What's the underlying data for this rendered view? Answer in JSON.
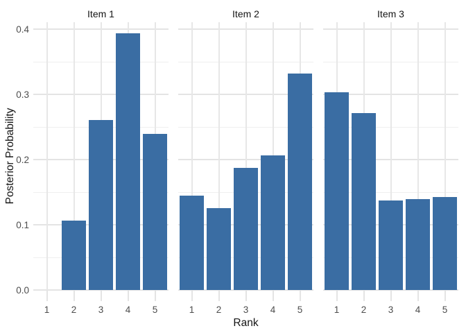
{
  "chart_data": {
    "type": "bar",
    "layout": "faceted-columns",
    "title": "",
    "xlabel": "Rank",
    "ylabel": "Posterior Probability",
    "categories": [
      "1",
      "2",
      "3",
      "4",
      "5"
    ],
    "facets": [
      {
        "label": "Item 1",
        "values": [
          0.0,
          0.106,
          0.261,
          0.394,
          0.24
        ]
      },
      {
        "label": "Item 2",
        "values": [
          0.145,
          0.126,
          0.187,
          0.207,
          0.332
        ]
      },
      {
        "label": "Item 3",
        "values": [
          0.304,
          0.272,
          0.137,
          0.14,
          0.143
        ]
      }
    ],
    "ylim": [
      0,
      0.411
    ],
    "yticks": [
      0,
      0.1,
      0.2,
      0.3,
      0.4
    ],
    "ytick_labels": [
      "0.0",
      "0.1",
      "0.2",
      "0.3",
      "0.4"
    ],
    "minor_gridline_step": 0.05,
    "grid": "major+minor",
    "legend": "none",
    "bar_color": "#3A6DA3"
  },
  "colors": {
    "background": "#FFFFFF",
    "bar_fill": "#3A6DA3",
    "grid_major": "#E4E4E4",
    "grid_minor": "#EFEFEF",
    "axis_tick": "#E4E4E4",
    "tick_label_text": "#4D4D4D",
    "title_text": "#141414"
  }
}
